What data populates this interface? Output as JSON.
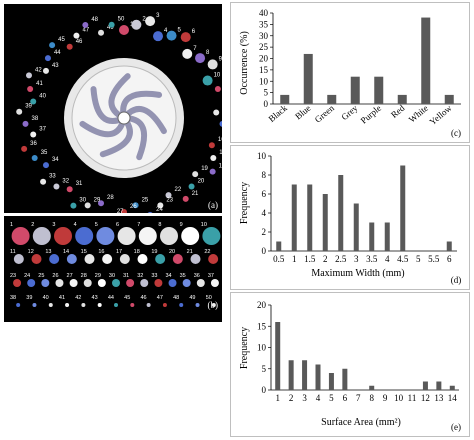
{
  "panel_a": {
    "label": "(a)",
    "numbers": [
      "1",
      "2",
      "3",
      "4",
      "5",
      "6",
      "7",
      "8",
      "9",
      "10",
      "11",
      "12",
      "13",
      "14",
      "15",
      "16",
      "17",
      "18",
      "19",
      "20",
      "21",
      "22",
      "23",
      "24",
      "25",
      "26",
      "27",
      "28",
      "29",
      "30",
      "31",
      "32",
      "33",
      "34",
      "35",
      "36",
      "37",
      "38",
      "39",
      "40",
      "41",
      "42",
      "43",
      "44",
      "45",
      "46",
      "47",
      "48",
      "49",
      "50"
    ]
  },
  "panel_b": {
    "label": "(b)",
    "row1": [
      "1",
      "2",
      "3",
      "4",
      "5",
      "6",
      "7",
      "8",
      "9",
      "10"
    ],
    "row2": [
      "11",
      "12",
      "13",
      "14",
      "15",
      "16",
      "17",
      "18",
      "19",
      "20",
      "21",
      "22"
    ],
    "row3": [
      "23",
      "24",
      "25",
      "26",
      "27",
      "28",
      "29",
      "30",
      "31",
      "32",
      "33",
      "34",
      "35",
      "36",
      "37"
    ],
    "row4": [
      "38",
      "39",
      "40",
      "41",
      "42",
      "43",
      "44",
      "45",
      "46",
      "47",
      "48",
      "49",
      "50"
    ]
  },
  "chart_data": [
    {
      "type": "bar",
      "panel_label": "(c)",
      "categories": [
        "Black",
        "Blue",
        "Green",
        "Grey",
        "Purple",
        "Red",
        "White",
        "Yellow"
      ],
      "values": [
        4,
        22,
        4,
        12,
        12,
        4,
        38,
        4
      ],
      "xlabel": "",
      "ylabel": "Occurrence (%)",
      "ylim": [
        0,
        40
      ],
      "yticks": [
        "0",
        "5",
        "10",
        "15",
        "20",
        "25",
        "30",
        "35",
        "40"
      ],
      "bar_color": "#595959"
    },
    {
      "type": "bar",
      "panel_label": "(d)",
      "categories": [
        "0.5",
        "1",
        "1.5",
        "2",
        "2.5",
        "3",
        "3.5",
        "4",
        "4.5",
        "5",
        "5.5",
        "6"
      ],
      "values": [
        1,
        7,
        7,
        6,
        8,
        5,
        3,
        3,
        9,
        0,
        0,
        1
      ],
      "xlabel": "Maximum Width (mm)",
      "ylabel": "Frequency",
      "ylim": [
        0,
        10
      ],
      "yticks": [
        "0",
        "2",
        "4",
        "6",
        "8",
        "10"
      ],
      "bar_color": "#595959"
    },
    {
      "type": "bar",
      "panel_label": "(e)",
      "categories": [
        "1",
        "2",
        "3",
        "4",
        "5",
        "6",
        "7",
        "8",
        "9",
        "10",
        "11",
        "12",
        "13",
        "14"
      ],
      "values": [
        16,
        7,
        7,
        6,
        4,
        5,
        0,
        1,
        0,
        0,
        0,
        2,
        2,
        1
      ],
      "xlabel": "Surface Area (mm²)",
      "ylabel": "Frequency",
      "ylim": [
        0,
        20
      ],
      "yticks": [
        "0",
        "5",
        "10",
        "15",
        "20"
      ],
      "bar_color": "#595959"
    }
  ]
}
